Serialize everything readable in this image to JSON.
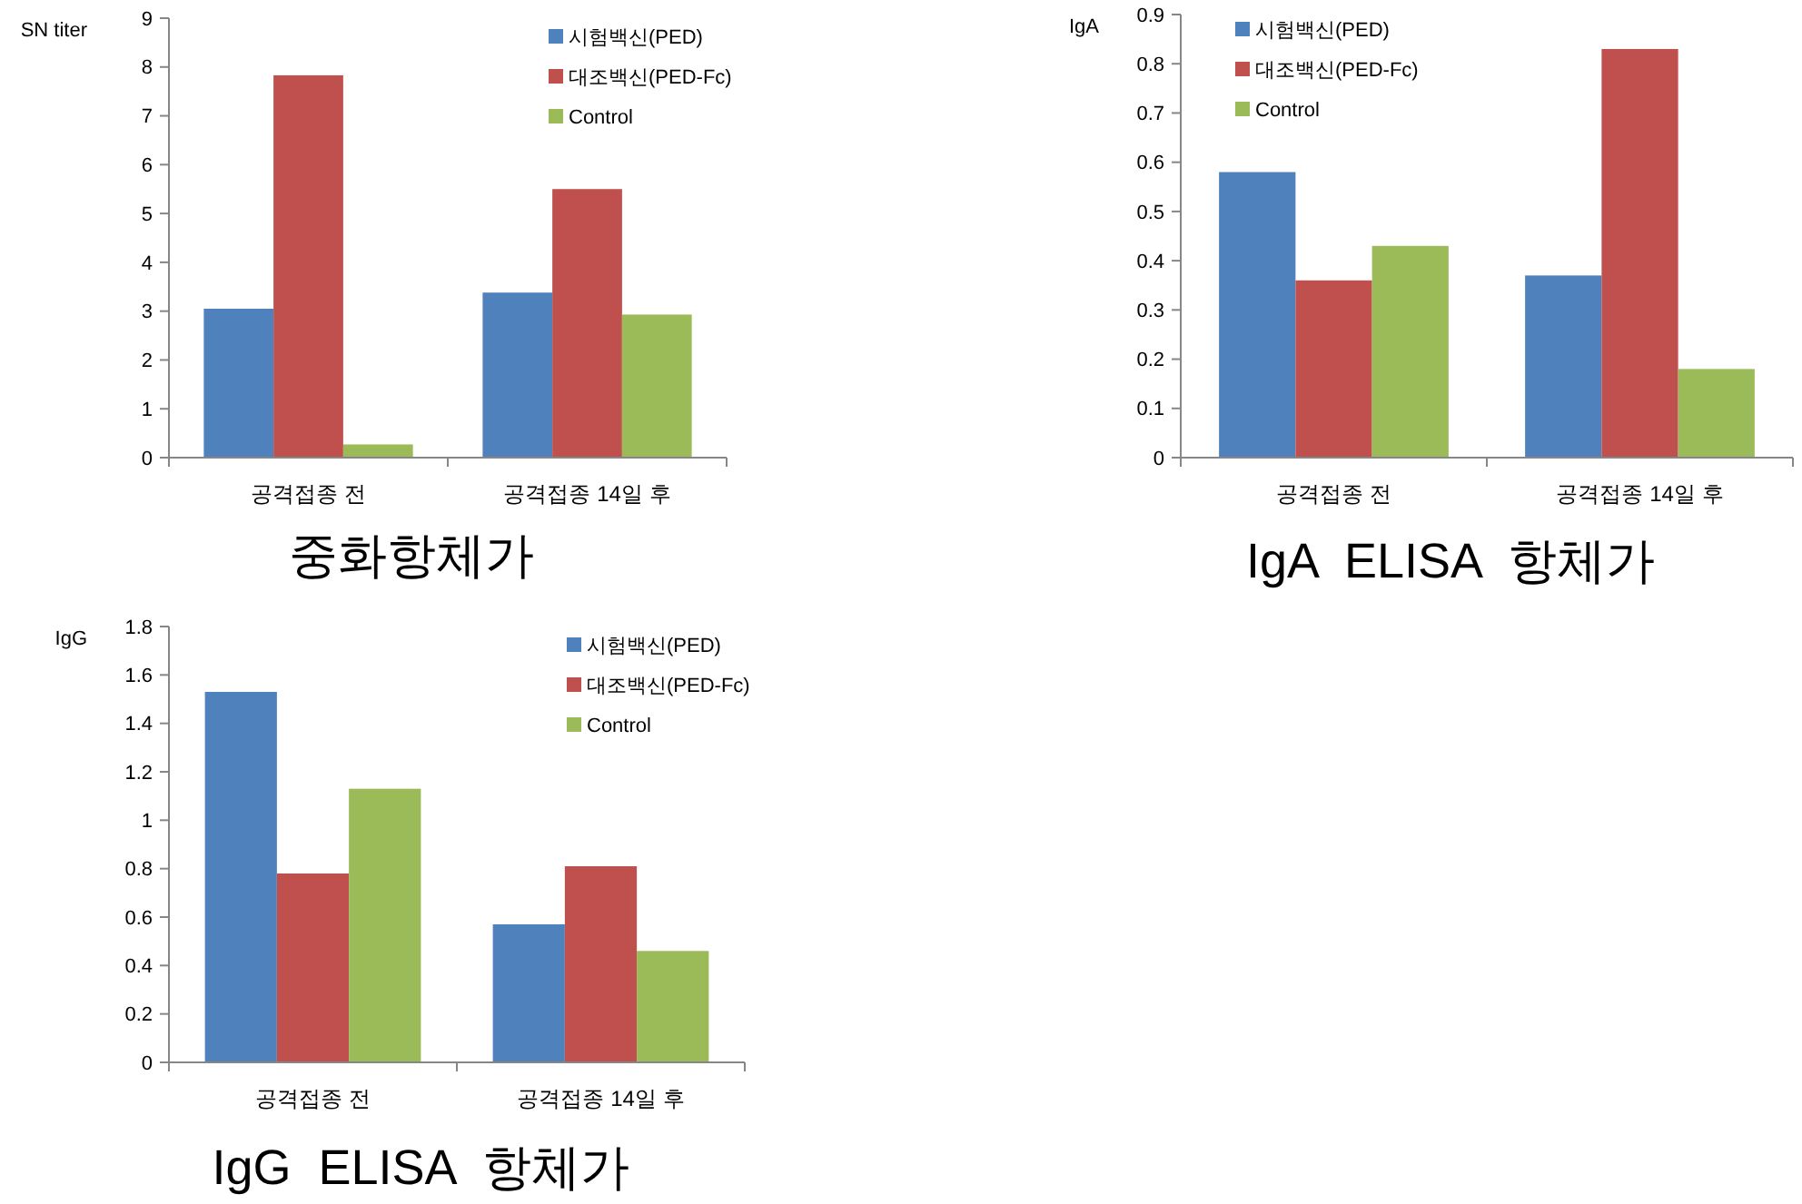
{
  "chart_data": [
    {
      "type": "bar",
      "title": "중화항체가",
      "ylabel": "SN titer",
      "categories": [
        "공격접종 전",
        "공격접종 14일 후"
      ],
      "series": [
        {
          "name": "시험백신(PED)",
          "color": "#4f81bd",
          "values": [
            3.05,
            3.38
          ]
        },
        {
          "name": "대조백신(PED-Fc)",
          "color": "#c0504d",
          "values": [
            7.83,
            5.5
          ]
        },
        {
          "name": "Control",
          "color": "#9bbb59",
          "values": [
            0.27,
            2.93
          ]
        }
      ],
      "ylim": [
        0,
        9
      ],
      "yticks": [
        0,
        1,
        2,
        3,
        4,
        5,
        6,
        7,
        8,
        9
      ],
      "legend": "top right"
    },
    {
      "type": "bar",
      "title": "IgA  ELISA  항체가",
      "ylabel": "IgA",
      "categories": [
        "공격접종 전",
        "공격접종 14일 후"
      ],
      "series": [
        {
          "name": "시험백신(PED)",
          "color": "#4f81bd",
          "values": [
            0.58,
            0.37
          ]
        },
        {
          "name": "대조백신(PED-Fc)",
          "color": "#c0504d",
          "values": [
            0.36,
            0.83
          ]
        },
        {
          "name": "Control",
          "color": "#9bbb59",
          "values": [
            0.43,
            0.18
          ]
        }
      ],
      "ylim": [
        0,
        0.9
      ],
      "yticks": [
        0,
        0.1,
        0.2,
        0.3,
        0.4,
        0.5,
        0.6,
        0.7,
        0.8,
        0.9
      ],
      "legend": "top left"
    },
    {
      "type": "bar",
      "title": "IgG  ELISA  항체가",
      "ylabel": "IgG",
      "categories": [
        "공격접종 전",
        "공격접종 14일 후"
      ],
      "series": [
        {
          "name": "시험백신(PED)",
          "color": "#4f81bd",
          "values": [
            1.53,
            0.57
          ]
        },
        {
          "name": "대조백신(PED-Fc)",
          "color": "#c0504d",
          "values": [
            0.78,
            0.81
          ]
        },
        {
          "name": "Control",
          "color": "#9bbb59",
          "values": [
            1.13,
            0.46
          ]
        }
      ],
      "ylim": [
        0,
        1.8
      ],
      "yticks": [
        0,
        0.2,
        0.4,
        0.6,
        0.8,
        1,
        1.2,
        1.4,
        1.6,
        1.8
      ],
      "legend": "top right"
    }
  ]
}
